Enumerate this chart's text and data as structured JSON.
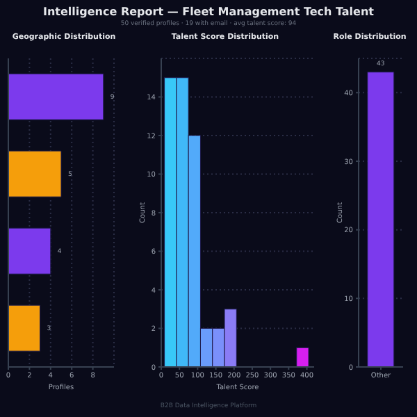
{
  "chart_data": [
    {
      "type": "other",
      "title": "Intelligence Report — Fleet Management Tech Talent",
      "subtitle": "50 verified profiles · 19 with email · avg talent score: 94",
      "annotations": [
        "B2B Data Intelligence Platform"
      ]
    },
    {
      "type": "bar",
      "orientation": "horizontal",
      "title": "Geographic Distribution",
      "xlabel": "Profiles",
      "categories": [
        null,
        null,
        null,
        null
      ],
      "values": [
        9,
        5,
        4,
        3
      ],
      "colors": [
        "#7c3aed",
        "#f59e0b",
        "#7c3aed",
        "#f59e0b"
      ],
      "xlim": [
        0,
        10
      ],
      "xticks": [
        0,
        2,
        4,
        6,
        8
      ],
      "grid": "x",
      "data_labels": true,
      "tick_labels": "x"
    },
    {
      "type": "histogram",
      "title": "Talent Score Distribution",
      "xlabel": "Talent Score",
      "ylabel": "Count",
      "bins": [
        10,
        43,
        76,
        109,
        142,
        175,
        208,
        241,
        274,
        307,
        340,
        373,
        406
      ],
      "values": [
        15,
        15,
        12,
        2,
        2,
        3,
        0,
        0,
        0,
        0,
        0,
        1
      ],
      "colors": [
        "#38c8f8",
        "#40b8f8",
        "#52aafa",
        "#6a9cfb",
        "#7a90fb",
        "#8a7cf6",
        "#8a7cf6",
        "#8a7cf6",
        "#8a7cf6",
        "#8a7cf6",
        "#8a7cf6",
        "#d61ff0"
      ],
      "xlim": [
        0,
        420
      ],
      "xticks": [
        0,
        50,
        100,
        150,
        200,
        250,
        300,
        350,
        400
      ],
      "ylim": [
        0,
        16
      ],
      "yticks": [
        0,
        2,
        4,
        6,
        8,
        10,
        12,
        14
      ],
      "grid": "y"
    },
    {
      "type": "bar",
      "title": "Role Distribution",
      "ylabel": "Count",
      "categories": [
        "Other"
      ],
      "values": [
        43
      ],
      "color": "#7c3aed",
      "ylim": [
        0,
        45
      ],
      "yticks": [
        0,
        10,
        20,
        30,
        40
      ],
      "grid": "y",
      "data_labels": true
    }
  ]
}
